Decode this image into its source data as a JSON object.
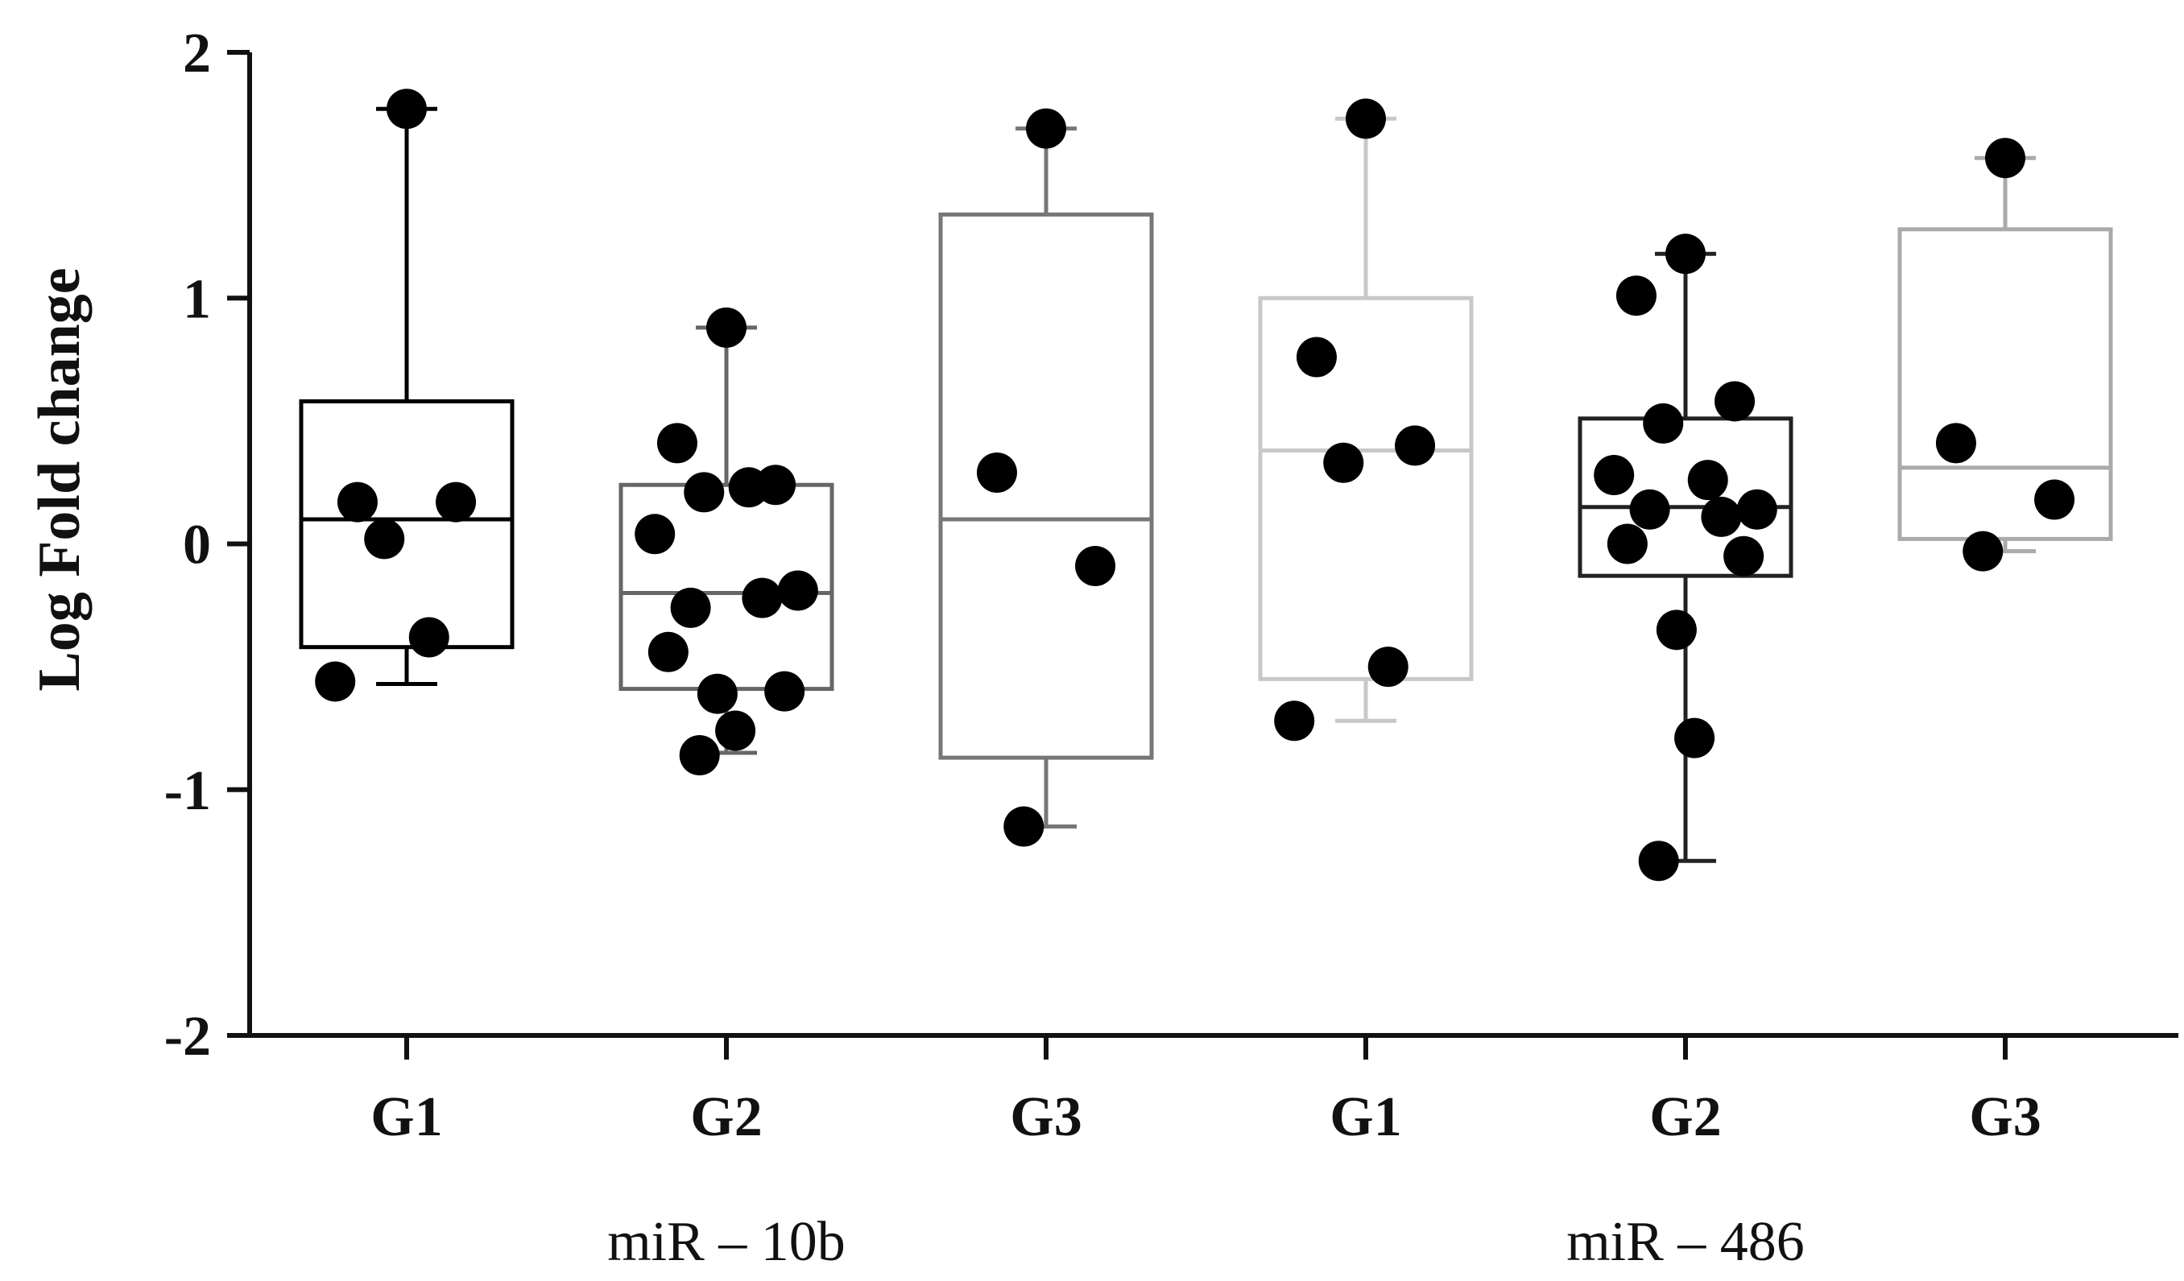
{
  "chart_data": {
    "type": "box",
    "ylabel": "Log Fold change",
    "xlabel": "",
    "ylim": [
      -2,
      2
    ],
    "yticks": [
      -2,
      -1,
      0,
      1,
      2
    ],
    "grid": false,
    "groups": [
      {
        "label": "miR – 10b",
        "categories": [
          "G1",
          "G2",
          "G3"
        ]
      },
      {
        "label": "miR – 486",
        "categories": [
          "G1",
          "G2",
          "G3"
        ]
      }
    ],
    "boxes": [
      {
        "group": "miR – 10b",
        "category": "G1",
        "color": "#000000",
        "q1": -0.42,
        "median": 0.1,
        "q3": 0.58,
        "whisker_low": -0.57,
        "whisker_high": 1.77,
        "points": [
          1.77,
          0.17,
          0.17,
          0.02,
          -0.38,
          -0.56
        ]
      },
      {
        "group": "miR – 10b",
        "category": "G2",
        "color": "#666666",
        "q1": -0.59,
        "median": -0.2,
        "q3": 0.24,
        "whisker_low": -0.85,
        "whisker_high": 0.88,
        "points": [
          0.88,
          0.41,
          0.24,
          0.21,
          0.23,
          0.04,
          -0.19,
          -0.26,
          -0.22,
          -0.44,
          -0.6,
          -0.61,
          -0.76,
          -0.86
        ]
      },
      {
        "group": "miR – 10b",
        "category": "G3",
        "color": "#777777",
        "q1": -0.87,
        "median": 0.1,
        "q3": 1.34,
        "whisker_low": -1.15,
        "whisker_high": 1.69,
        "points": [
          1.69,
          0.29,
          -0.09,
          -1.15
        ]
      },
      {
        "group": "miR – 486",
        "category": "G1",
        "color": "#c8c8c8",
        "q1": -0.55,
        "median": 0.38,
        "q3": 1.0,
        "whisker_low": -0.72,
        "whisker_high": 1.73,
        "points": [
          1.73,
          0.76,
          0.4,
          0.33,
          -0.5,
          -0.72
        ]
      },
      {
        "group": "miR – 486",
        "category": "G2",
        "color": "#222222",
        "q1": -0.13,
        "median": 0.15,
        "q3": 0.51,
        "whisker_low": -1.29,
        "whisker_high": 1.18,
        "points": [
          1.18,
          1.01,
          0.58,
          0.49,
          0.26,
          0.28,
          0.14,
          0.14,
          0.11,
          0.0,
          -0.05,
          -0.35,
          -0.79,
          -1.29
        ]
      },
      {
        "group": "miR – 486",
        "category": "G3",
        "color": "#aaaaaa",
        "q1": 0.02,
        "median": 0.31,
        "q3": 1.28,
        "whisker_low": -0.03,
        "whisker_high": 1.57,
        "points": [
          1.57,
          0.41,
          0.18,
          -0.03
        ]
      }
    ]
  }
}
